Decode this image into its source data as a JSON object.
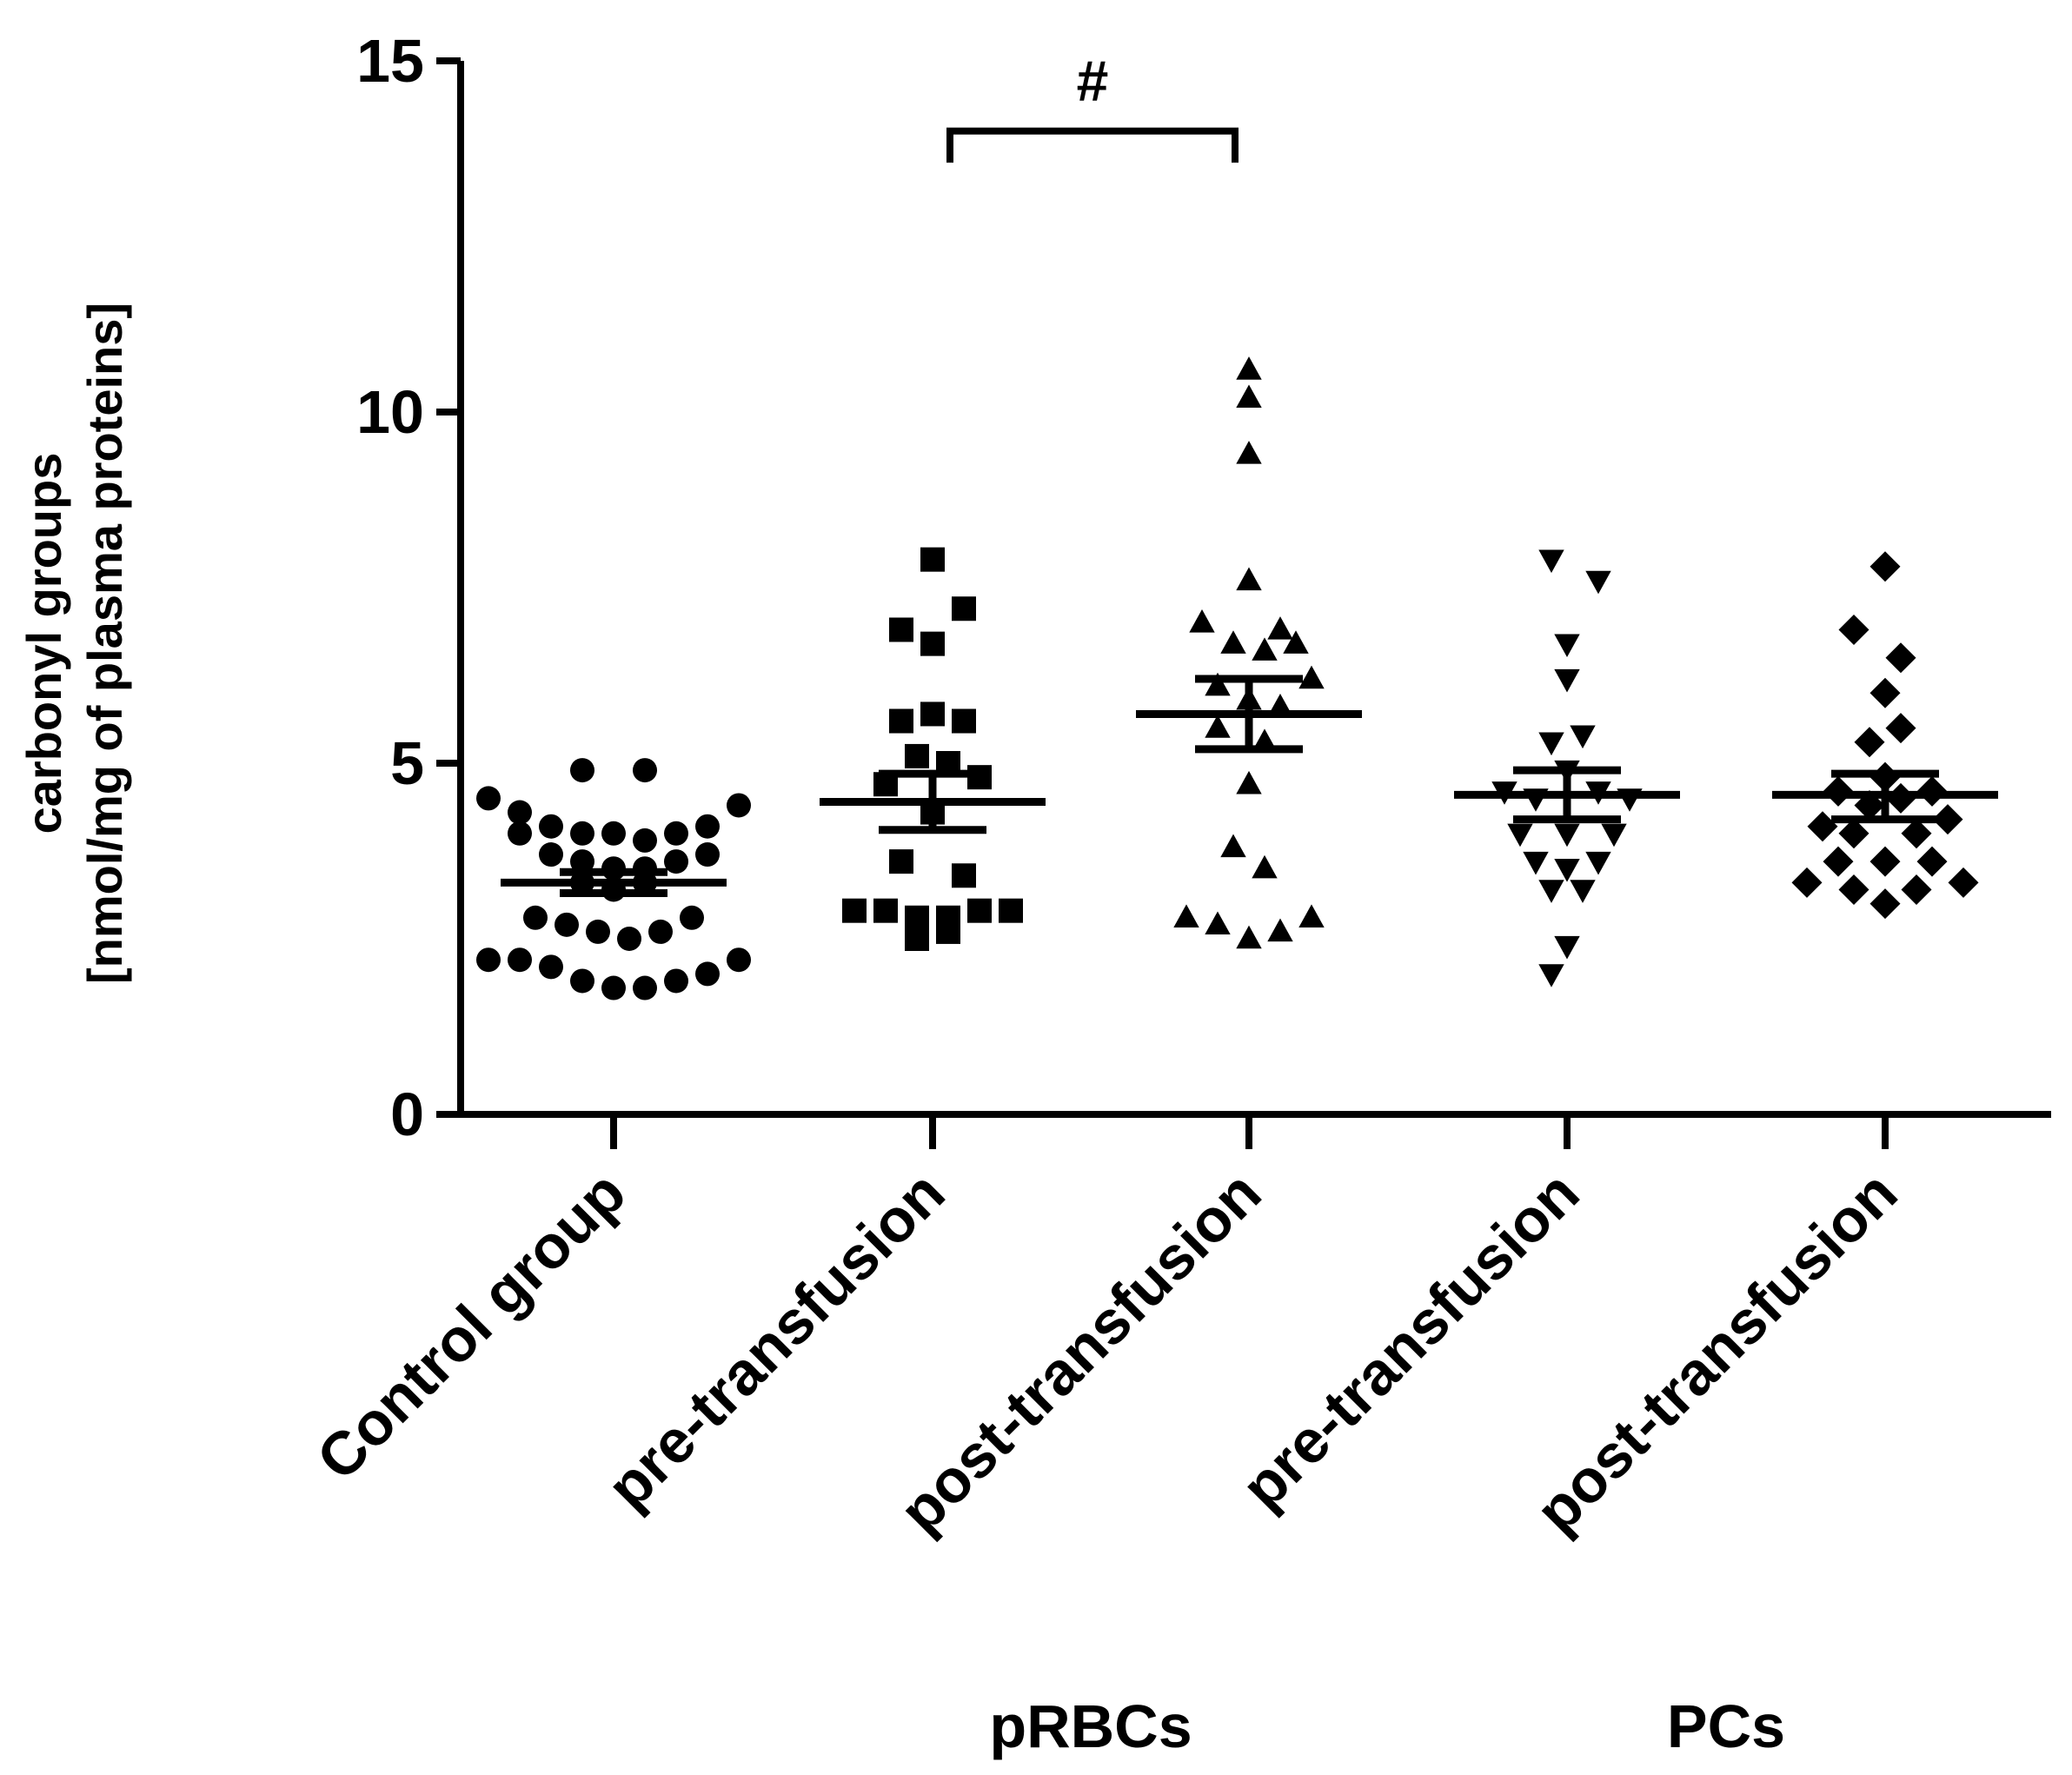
{
  "chart_data": {
    "type": "scatter",
    "title": "",
    "xlabel": "",
    "ylabel_lines": [
      "carbonyl groups",
      "[nmol/mg of plasma proteins]"
    ],
    "ylim": [
      0,
      15
    ],
    "yticks": [
      0,
      5,
      10,
      15
    ],
    "categories": [
      "Control group",
      "pre-transfusion",
      "post-transfusion",
      "pre-transfusion",
      "post-transfusion"
    ],
    "group_labels": [
      {
        "label": "pRBCs",
        "categories": [
          1,
          2
        ]
      },
      {
        "label": "PCs",
        "categories": [
          3,
          4
        ]
      }
    ],
    "significance": {
      "from": 1,
      "to": 2,
      "label": "#",
      "y": 14.0
    },
    "colors": {
      "marker": "#000000",
      "axis": "#000000"
    },
    "series": [
      {
        "name": "Control group",
        "marker": "circle",
        "mean": 3.3,
        "sem": [
          3.15,
          3.45
        ],
        "points": [
          [
            -0.4,
            4.5
          ],
          [
            -0.3,
            4.0
          ],
          [
            -0.2,
            4.1
          ],
          [
            -0.1,
            4.0
          ],
          [
            0.0,
            4.0
          ],
          [
            0.1,
            3.9
          ],
          [
            0.2,
            4.0
          ],
          [
            0.3,
            4.1
          ],
          [
            0.4,
            4.4
          ],
          [
            -0.3,
            4.3
          ],
          [
            -0.1,
            4.9
          ],
          [
            0.1,
            4.9
          ],
          [
            -0.2,
            3.7
          ],
          [
            -0.1,
            3.6
          ],
          [
            0.0,
            3.5
          ],
          [
            0.1,
            3.5
          ],
          [
            0.2,
            3.6
          ],
          [
            0.3,
            3.7
          ],
          [
            -0.1,
            3.3
          ],
          [
            0.0,
            3.2
          ],
          [
            0.1,
            3.3
          ],
          [
            -0.25,
            2.8
          ],
          [
            -0.15,
            2.7
          ],
          [
            -0.05,
            2.6
          ],
          [
            0.05,
            2.5
          ],
          [
            0.15,
            2.6
          ],
          [
            0.25,
            2.8
          ],
          [
            -0.4,
            2.2
          ],
          [
            -0.3,
            2.2
          ],
          [
            -0.2,
            2.1
          ],
          [
            -0.1,
            1.9
          ],
          [
            0.0,
            1.8
          ],
          [
            0.1,
            1.8
          ],
          [
            0.2,
            1.9
          ],
          [
            0.3,
            2.0
          ],
          [
            0.4,
            2.2
          ]
        ]
      },
      {
        "name": "pRBCs pre-transfusion",
        "marker": "square",
        "mean": 4.45,
        "sem": [
          4.05,
          4.85
        ],
        "points": [
          [
            0.0,
            7.9
          ],
          [
            -0.1,
            6.9
          ],
          [
            0.1,
            7.2
          ],
          [
            0.0,
            6.7
          ],
          [
            -0.1,
            5.6
          ],
          [
            0.0,
            5.7
          ],
          [
            0.1,
            5.6
          ],
          [
            -0.05,
            5.1
          ],
          [
            0.05,
            5.0
          ],
          [
            -0.15,
            4.7
          ],
          [
            0.15,
            4.8
          ],
          [
            0.0,
            4.3
          ],
          [
            -0.1,
            3.6
          ],
          [
            0.1,
            3.4
          ],
          [
            -0.25,
            2.9
          ],
          [
            -0.15,
            2.9
          ],
          [
            -0.05,
            2.8
          ],
          [
            0.05,
            2.8
          ],
          [
            0.15,
            2.9
          ],
          [
            0.25,
            2.9
          ],
          [
            -0.05,
            2.5
          ],
          [
            0.05,
            2.6
          ]
        ]
      },
      {
        "name": "pRBCs post-transfusion",
        "marker": "triangle",
        "mean": 5.7,
        "sem": [
          5.2,
          6.2
        ],
        "points": [
          [
            0.0,
            10.6
          ],
          [
            0.0,
            10.2
          ],
          [
            0.0,
            9.4
          ],
          [
            0.0,
            7.6
          ],
          [
            -0.15,
            7.0
          ],
          [
            0.1,
            6.9
          ],
          [
            -0.05,
            6.7
          ],
          [
            0.05,
            6.6
          ],
          [
            0.15,
            6.7
          ],
          [
            0.2,
            6.2
          ],
          [
            -0.1,
            6.1
          ],
          [
            0.0,
            5.9
          ],
          [
            0.1,
            5.8
          ],
          [
            -0.1,
            5.5
          ],
          [
            0.05,
            5.3
          ],
          [
            0.0,
            4.7
          ],
          [
            -0.05,
            3.8
          ],
          [
            0.05,
            3.5
          ],
          [
            -0.2,
            2.8
          ],
          [
            -0.1,
            2.7
          ],
          [
            0.0,
            2.5
          ],
          [
            0.1,
            2.6
          ],
          [
            0.2,
            2.8
          ]
        ]
      },
      {
        "name": "PCs pre-transfusion",
        "marker": "triangle-down",
        "mean": 4.55,
        "sem": [
          4.2,
          4.9
        ],
        "points": [
          [
            -0.05,
            7.9
          ],
          [
            0.1,
            7.6
          ],
          [
            0.0,
            6.7
          ],
          [
            0.0,
            6.2
          ],
          [
            -0.05,
            5.3
          ],
          [
            0.05,
            5.4
          ],
          [
            0.0,
            4.9
          ],
          [
            -0.2,
            4.6
          ],
          [
            -0.1,
            4.5
          ],
          [
            0.1,
            4.6
          ],
          [
            0.2,
            4.5
          ],
          [
            -0.15,
            4.0
          ],
          [
            0.0,
            4.0
          ],
          [
            0.15,
            4.0
          ],
          [
            -0.1,
            3.6
          ],
          [
            0.0,
            3.5
          ],
          [
            0.1,
            3.6
          ],
          [
            -0.05,
            3.2
          ],
          [
            0.05,
            3.2
          ],
          [
            0.0,
            2.4
          ],
          [
            -0.05,
            2.0
          ]
        ]
      },
      {
        "name": "PCs post-transfusion",
        "marker": "diamond",
        "mean": 4.55,
        "sem": [
          4.2,
          4.85
        ],
        "points": [
          [
            0.0,
            7.8
          ],
          [
            -0.1,
            6.9
          ],
          [
            0.05,
            6.5
          ],
          [
            0.0,
            6.0
          ],
          [
            -0.05,
            5.3
          ],
          [
            0.05,
            5.5
          ],
          [
            0.0,
            4.8
          ],
          [
            -0.15,
            4.6
          ],
          [
            -0.05,
            4.4
          ],
          [
            0.05,
            4.5
          ],
          [
            0.15,
            4.6
          ],
          [
            -0.2,
            4.1
          ],
          [
            -0.1,
            4.0
          ],
          [
            0.1,
            4.0
          ],
          [
            0.2,
            4.2
          ],
          [
            -0.15,
            3.6
          ],
          [
            0.0,
            3.6
          ],
          [
            0.15,
            3.6
          ],
          [
            -0.25,
            3.3
          ],
          [
            -0.1,
            3.2
          ],
          [
            0.1,
            3.2
          ],
          [
            0.25,
            3.3
          ],
          [
            0.0,
            3.0
          ]
        ]
      }
    ]
  }
}
